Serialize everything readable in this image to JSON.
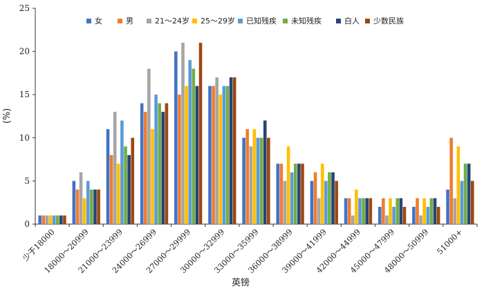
{
  "chart_data": {
    "type": "bar",
    "xlabel": "英镑",
    "ylabel": "(%)",
    "ylim": [
      0,
      25
    ],
    "yticks": [
      0,
      5,
      10,
      15,
      20,
      25
    ],
    "grid": false,
    "legend_position": "top",
    "categories": [
      "少于18000",
      "18000～20999",
      "21000～23999",
      "24000～26999",
      "27000～29999",
      "30000～32999",
      "33000～35999",
      "36000～38999",
      "39000～41999",
      "42000～44999",
      "45000～47999",
      "48000～50999",
      "51000+"
    ],
    "series": [
      {
        "name": "女",
        "color": "#4472c4",
        "values": [
          1,
          5,
          11,
          14,
          20,
          16,
          10,
          7,
          5,
          3,
          2,
          2,
          4
        ]
      },
      {
        "name": "男",
        "color": "#ed7d31",
        "values": [
          1,
          4,
          8,
          13,
          15,
          16,
          11,
          7,
          6,
          3,
          3,
          3,
          10
        ]
      },
      {
        "name": "21～24岁",
        "color": "#a5a5a5",
        "values": [
          1,
          6,
          13,
          18,
          21,
          17,
          9,
          5,
          3,
          1,
          1,
          1,
          3
        ]
      },
      {
        "name": "25～29岁",
        "color": "#ffc000",
        "values": [
          1,
          3,
          7,
          11,
          16,
          15,
          11,
          9,
          7,
          4,
          3,
          3,
          9
        ]
      },
      {
        "name": "已知残疾",
        "color": "#5b9bd5",
        "values": [
          1,
          5,
          12,
          15,
          19,
          16,
          10,
          6,
          5,
          3,
          2,
          2,
          5
        ]
      },
      {
        "name": "未知残疾",
        "color": "#70ad47",
        "values": [
          1,
          4,
          9,
          14,
          18,
          16,
          10,
          7,
          6,
          3,
          3,
          3,
          7
        ]
      },
      {
        "name": "白人",
        "color": "#264478",
        "values": [
          1,
          4,
          8,
          13,
          16,
          17,
          12,
          7,
          6,
          3,
          3,
          3,
          7
        ]
      },
      {
        "name": "少数民族",
        "color": "#9e480e",
        "values": [
          1,
          4,
          10,
          14,
          21,
          17,
          10,
          7,
          5,
          3,
          2,
          2,
          5
        ]
      }
    ]
  }
}
